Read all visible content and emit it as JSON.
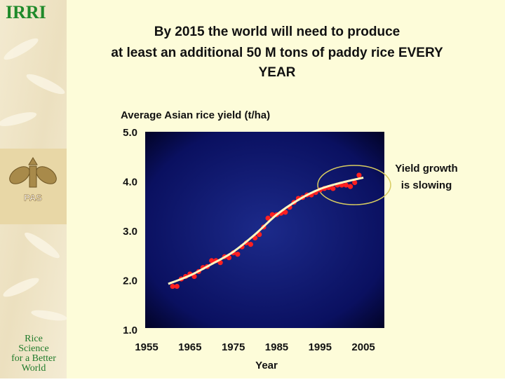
{
  "sidebar": {
    "logo": "IRRI",
    "emblem": "PAS",
    "motto": [
      "Rice",
      "Science",
      "for a Better",
      "World"
    ]
  },
  "chart_data": {
    "type": "scatter",
    "title": [
      "By 2015 the world will need to produce",
      "at least an additional 50 M tons of paddy rice EVERY",
      "YEAR"
    ],
    "y_label": "Average Asian rice yield (t/ha)",
    "x_label": "Year",
    "annotation": [
      "Yield growth",
      "is slowing"
    ],
    "x": [
      1961,
      1962,
      1963,
      1964,
      1965,
      1966,
      1967,
      1968,
      1969,
      1970,
      1971,
      1972,
      1973,
      1974,
      1975,
      1976,
      1977,
      1978,
      1979,
      1980,
      1981,
      1982,
      1983,
      1984,
      1985,
      1986,
      1987,
      1988,
      1989,
      1990,
      1991,
      1992,
      1993,
      1994,
      1995,
      1996,
      1997,
      1998,
      1999,
      2000,
      2001,
      2002,
      2003,
      2004
    ],
    "values": [
      1.9,
      1.9,
      2.05,
      2.1,
      2.15,
      2.1,
      2.2,
      2.28,
      2.3,
      2.42,
      2.42,
      2.38,
      2.5,
      2.48,
      2.58,
      2.55,
      2.7,
      2.78,
      2.75,
      2.88,
      2.95,
      3.1,
      3.28,
      3.35,
      3.35,
      3.38,
      3.4,
      3.5,
      3.6,
      3.68,
      3.7,
      3.75,
      3.75,
      3.8,
      3.85,
      3.88,
      3.9,
      3.88,
      3.95,
      3.95,
      3.95,
      3.92,
      4.0,
      4.15
    ],
    "color": "#ff2020",
    "trend": {
      "x": [
        1960,
        1965,
        1970,
        1975,
        1980,
        1985,
        1990,
        1995,
        2000,
        2005
      ],
      "values": [
        1.95,
        2.12,
        2.35,
        2.6,
        2.95,
        3.35,
        3.65,
        3.87,
        4.0,
        4.1
      ],
      "color": "#fff8c0"
    },
    "xlim": [
      1955,
      2010
    ],
    "ylim": [
      1,
      5
    ],
    "xticks": [
      1955,
      1965,
      1975,
      1985,
      1995,
      2005
    ],
    "yticks": [
      {
        "value": 1,
        "label": "1.0"
      },
      {
        "value": 2,
        "label": "2.0"
      },
      {
        "value": 3,
        "label": "3.0"
      },
      {
        "value": 4,
        "label": "4.0"
      },
      {
        "value": 5,
        "label": "5.0"
      }
    ]
  }
}
